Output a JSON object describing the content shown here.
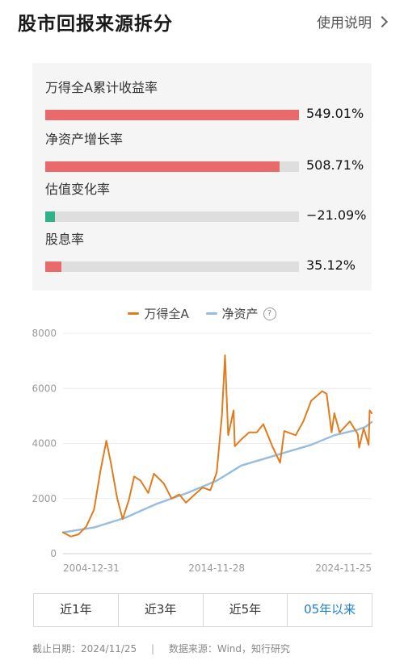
{
  "header": {
    "title": "股市回报来源拆分",
    "help_label": "使用说明",
    "help_icon": "chevron-right-icon"
  },
  "metrics": [
    {
      "label": "万得全A累计收益率",
      "value_text": "549.01%",
      "fraction": 1.0,
      "color": "#e86a6a"
    },
    {
      "label": "净资产增长率",
      "value_text": "508.71%",
      "fraction": 0.925,
      "color": "#e86a6a"
    },
    {
      "label": "估值变化率",
      "value_text": "−21.09%",
      "fraction": 0.038,
      "color": "#2fb28a"
    },
    {
      "label": "股息率",
      "value_text": "35.12%",
      "fraction": 0.063,
      "color": "#e86a6a"
    }
  ],
  "legend": {
    "help_icon": "question-circle-icon"
  },
  "chart_data": {
    "type": "line",
    "ylim": [
      0,
      8000
    ],
    "yticks": [
      0,
      2000,
      4000,
      6000,
      8000
    ],
    "xlim": [
      "2004-12-31",
      "2024-11-25"
    ],
    "xticks": [
      "2004-12-31",
      "2014-11-28",
      "2024-11-25"
    ],
    "grid": true,
    "legend_position": "top",
    "series": [
      {
        "name": "万得全A",
        "color": "#e07c1e",
        "points": [
          [
            "2004-12-31",
            770
          ],
          [
            "2005-06-30",
            620
          ],
          [
            "2005-12-31",
            700
          ],
          [
            "2006-06-30",
            980
          ],
          [
            "2006-12-31",
            1600
          ],
          [
            "2007-05-31",
            3000
          ],
          [
            "2007-10-16",
            4100
          ],
          [
            "2008-01-31",
            3300
          ],
          [
            "2008-06-30",
            2000
          ],
          [
            "2008-11-04",
            1250
          ],
          [
            "2009-03-31",
            1950
          ],
          [
            "2009-08-04",
            2800
          ],
          [
            "2009-12-31",
            2650
          ],
          [
            "2010-06-30",
            2200
          ],
          [
            "2010-11-10",
            2900
          ],
          [
            "2011-06-30",
            2550
          ],
          [
            "2011-12-31",
            2000
          ],
          [
            "2012-06-30",
            2150
          ],
          [
            "2012-12-03",
            1850
          ],
          [
            "2013-06-30",
            2150
          ],
          [
            "2013-12-31",
            2400
          ],
          [
            "2014-06-30",
            2300
          ],
          [
            "2014-11-28",
            2950
          ],
          [
            "2015-03-31",
            5000
          ],
          [
            "2015-06-12",
            7200
          ],
          [
            "2015-08-26",
            4300
          ],
          [
            "2015-12-31",
            5200
          ],
          [
            "2016-01-28",
            3900
          ],
          [
            "2016-06-30",
            4150
          ],
          [
            "2016-12-31",
            4400
          ],
          [
            "2017-06-30",
            4400
          ],
          [
            "2017-11-30",
            4700
          ],
          [
            "2018-06-30",
            3900
          ],
          [
            "2018-12-31",
            3300
          ],
          [
            "2019-04-08",
            4450
          ],
          [
            "2019-12-31",
            4300
          ],
          [
            "2020-06-30",
            4800
          ],
          [
            "2020-12-31",
            5550
          ],
          [
            "2021-09-15",
            5900
          ],
          [
            "2021-12-31",
            5800
          ],
          [
            "2022-04-26",
            4400
          ],
          [
            "2022-06-30",
            5100
          ],
          [
            "2022-10-31",
            4400
          ],
          [
            "2023-06-30",
            4800
          ],
          [
            "2023-12-31",
            4350
          ],
          [
            "2024-02-05",
            3850
          ],
          [
            "2024-05-20",
            4550
          ],
          [
            "2024-09-13",
            3950
          ],
          [
            "2024-10-08",
            5200
          ],
          [
            "2024-11-25",
            5100
          ]
        ]
      },
      {
        "name": "净资产",
        "color": "#96bde0",
        "points": [
          [
            "2004-12-31",
            770
          ],
          [
            "2006-12-31",
            950
          ],
          [
            "2008-12-31",
            1300
          ],
          [
            "2010-12-31",
            1800
          ],
          [
            "2012-12-31",
            2200
          ],
          [
            "2014-11-28",
            2650
          ],
          [
            "2016-06-30",
            3200
          ],
          [
            "2017-12-31",
            3450
          ],
          [
            "2019-06-30",
            3700
          ],
          [
            "2020-12-31",
            3950
          ],
          [
            "2022-06-30",
            4300
          ],
          [
            "2023-12-31",
            4500
          ],
          [
            "2024-06-30",
            4600
          ],
          [
            "2024-11-25",
            4780
          ]
        ]
      }
    ]
  },
  "tabs": [
    {
      "label": "近1年",
      "active": false
    },
    {
      "label": "近3年",
      "active": false
    },
    {
      "label": "近5年",
      "active": false
    },
    {
      "label": "05年以来",
      "active": true
    }
  ],
  "footer": {
    "date": "截止日期：2024/11/25",
    "separator": "|",
    "source": "数据来源：Wind，知行研究"
  }
}
